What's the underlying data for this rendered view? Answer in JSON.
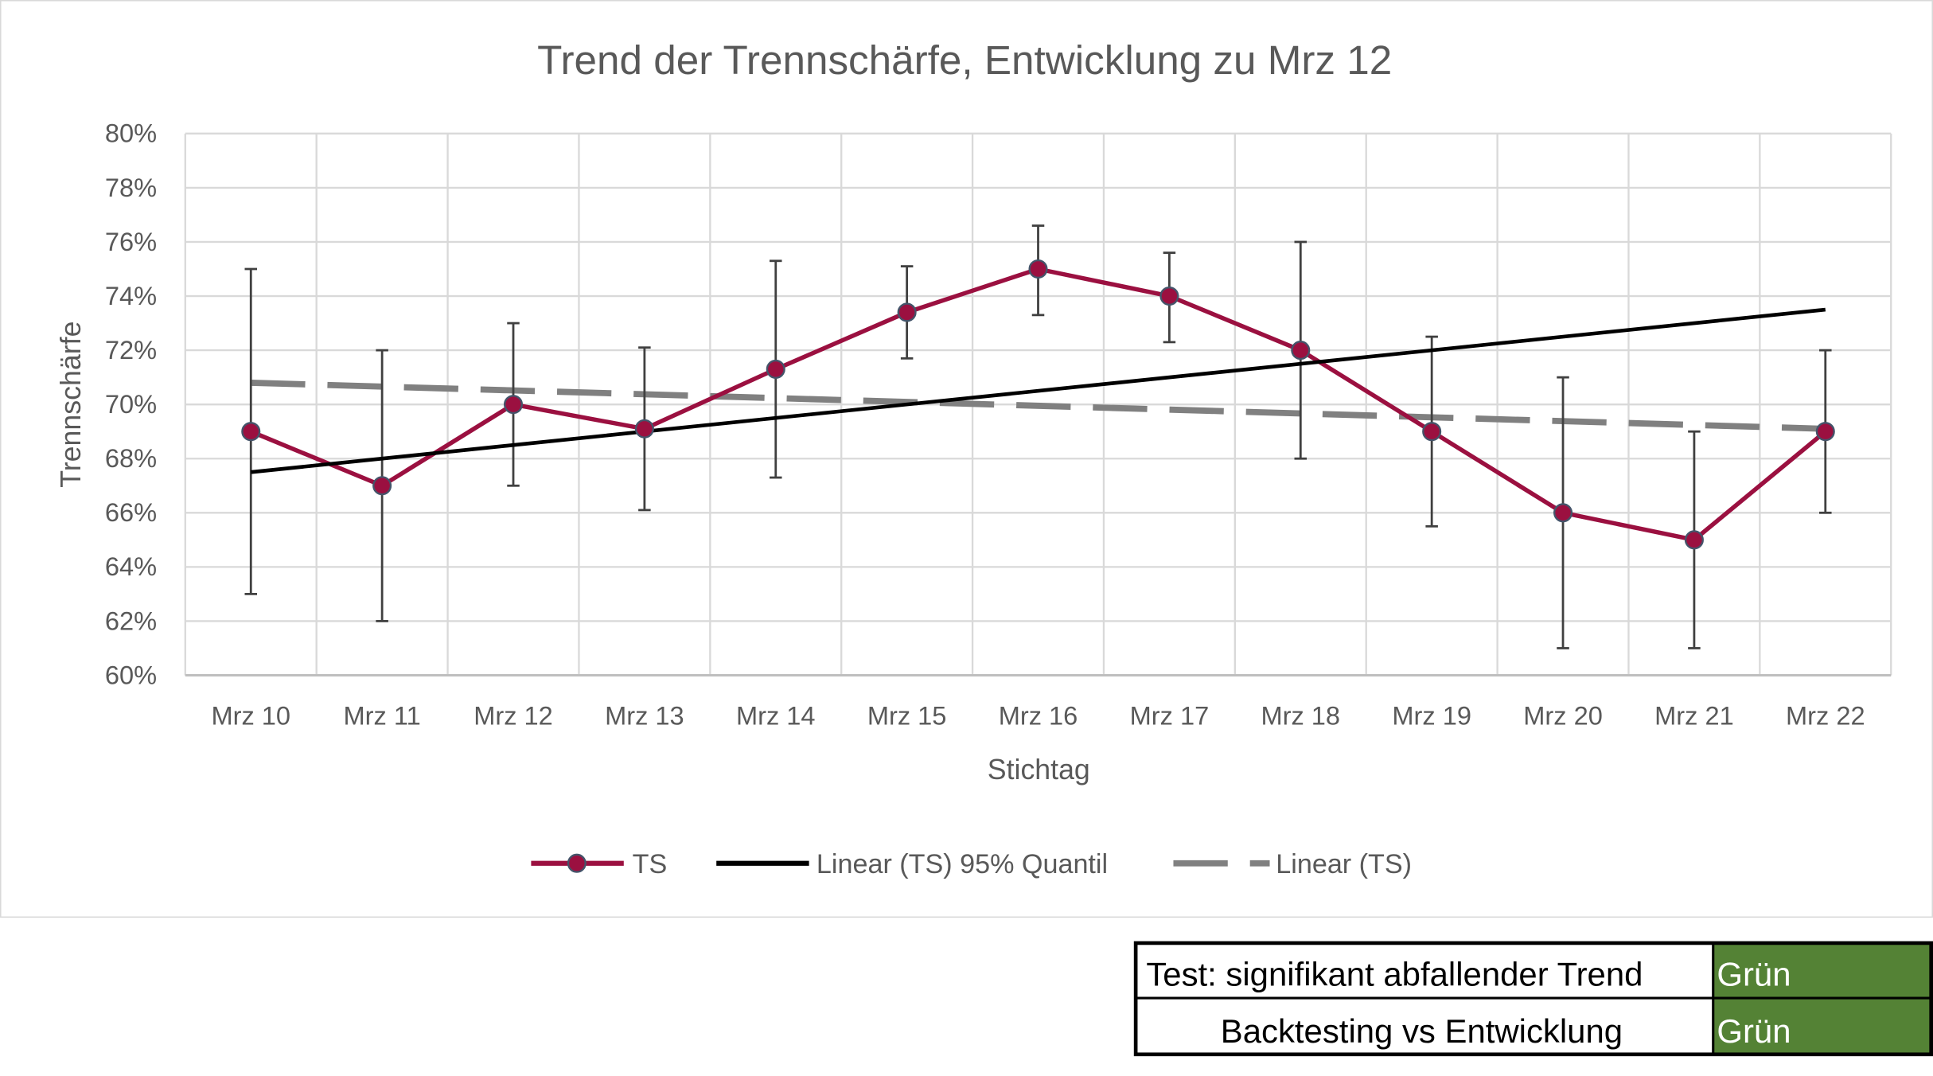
{
  "chart_data": {
    "type": "line",
    "title": "Trend der Trennschärfe, Entwicklung zu Mrz 12",
    "xlabel": "Stichtag",
    "ylabel": "Trennschärfe",
    "ylim": [
      0.6,
      0.8
    ],
    "yticks": [
      "60%",
      "62%",
      "64%",
      "66%",
      "68%",
      "70%",
      "72%",
      "74%",
      "76%",
      "78%",
      "80%"
    ],
    "grid": true,
    "legend_placement": "bottom",
    "categories": [
      "Mrz 10",
      "Mrz 11",
      "Mrz 12",
      "Mrz 13",
      "Mrz 14",
      "Mrz 15",
      "Mrz 16",
      "Mrz 17",
      "Mrz 18",
      "Mrz 19",
      "Mrz 20",
      "Mrz 21",
      "Mrz 22"
    ],
    "series": [
      {
        "name": "TS",
        "style": "line-marker",
        "color": "#9B1040",
        "values": [
          0.69,
          0.67,
          0.7,
          0.691,
          0.713,
          0.734,
          0.75,
          0.74,
          0.72,
          0.69,
          0.66,
          0.65,
          0.69
        ],
        "error_upper": [
          0.75,
          0.72,
          0.73,
          0.721,
          0.753,
          0.751,
          0.766,
          0.756,
          0.76,
          0.725,
          0.71,
          0.69,
          0.72
        ],
        "error_lower": [
          0.63,
          0.62,
          0.67,
          0.661,
          0.673,
          0.717,
          0.733,
          0.723,
          0.68,
          0.655,
          0.61,
          0.61,
          0.66
        ]
      },
      {
        "name": "Linear (TS) 95% Quantil",
        "style": "solid",
        "color": "#000000",
        "start": 0.675,
        "end": 0.735
      },
      {
        "name": "Linear (TS)",
        "style": "dashed",
        "color": "#808080",
        "start": 0.708,
        "end": 0.691
      }
    ]
  },
  "status_table": {
    "rows": [
      {
        "label": "Test: signifikant abfallender Trend",
        "value": "Grün"
      },
      {
        "label": "Backtesting vs Entwicklung",
        "value": "Grün"
      }
    ],
    "status_color": "#548235"
  }
}
